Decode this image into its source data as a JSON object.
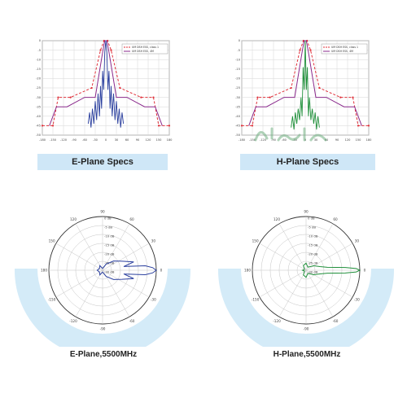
{
  "panels": {
    "e_spec_banner": "E-Plane Specs",
    "h_spec_banner": "H-Plane Specs",
    "e_polar_banner": "E-Plane,5500MHz",
    "h_polar_banner": "H-Plane,5500MHz",
    "watermark": "آگهی سرا"
  },
  "colors": {
    "banner_bg": "#cfe7f7",
    "arc_bg": "#d4ebf8",
    "limit_dashed": "#e0303a",
    "limit_solid": "#8a2a8c",
    "e_pattern": "#2a3f9e",
    "h_pattern": "#1f8f3a",
    "grid": "#bfbfbf"
  },
  "chart_data": [
    {
      "type": "line",
      "panel": "E-Plane Specs",
      "xlim": [
        -180,
        180
      ],
      "ylim": [
        -50,
        0
      ],
      "xticks": [
        "-180",
        "-150",
        "-120",
        "-90",
        "-60",
        "-30",
        "0",
        "30",
        "60",
        "90",
        "120",
        "150",
        "180"
      ],
      "yticks": [
        "0",
        "-5",
        "-10",
        "-15",
        "-20",
        "-25",
        "-30",
        "-35",
        "-40",
        "-45",
        "-50"
      ],
      "legend": [
        "UM DSH ESS, class 1",
        "UM DSH ESS, 4M"
      ],
      "series": [
        {
          "style": "dashed",
          "color": "#e0303a",
          "x": [
            -180,
            -150,
            -135,
            -100,
            -40,
            -15,
            -5,
            5,
            15,
            40,
            100,
            135,
            150,
            180
          ],
          "y": [
            -45,
            -45,
            -30,
            -30,
            -25,
            -5,
            0,
            0,
            -5,
            -25,
            -30,
            -30,
            -45,
            -45
          ]
        },
        {
          "style": "solid",
          "color": "#8a2a8c",
          "x": [
            -160,
            -140,
            -110,
            -60,
            -30,
            -8,
            -3,
            3,
            8,
            30,
            60,
            110,
            140,
            160
          ],
          "y": [
            -45,
            -35,
            -35,
            -30,
            -30,
            -5,
            0,
            0,
            -5,
            -30,
            -30,
            -35,
            -35,
            -45
          ]
        },
        {
          "style": "solid",
          "color": "#2a3f9e",
          "x": [
            -50,
            -46,
            -42,
            -38,
            -34,
            -30,
            -26,
            -22,
            -18,
            -15,
            -12,
            -9,
            -6,
            -3,
            0,
            3,
            6,
            9,
            12,
            15,
            18,
            22,
            26,
            30,
            34,
            38,
            42,
            46,
            50
          ],
          "y": [
            -44,
            -38,
            -46,
            -36,
            -44,
            -32,
            -42,
            -28,
            -40,
            -24,
            -36,
            -16,
            -26,
            -6,
            0,
            -6,
            -26,
            -16,
            -36,
            -24,
            -40,
            -28,
            -42,
            -32,
            -44,
            -36,
            -46,
            -38,
            -44
          ]
        }
      ]
    },
    {
      "type": "line",
      "panel": "H-Plane Specs",
      "xlim": [
        -180,
        180
      ],
      "ylim": [
        -50,
        0
      ],
      "xticks": [
        "-180",
        "-150",
        "-120",
        "-90",
        "-60",
        "-30",
        "0",
        "30",
        "60",
        "90",
        "120",
        "150",
        "180"
      ],
      "yticks": [
        "0",
        "-5",
        "-10",
        "-15",
        "-20",
        "-25",
        "-30",
        "-35",
        "-40",
        "-45",
        "-50"
      ],
      "legend": [
        "UM DSH ESS, class 1",
        "UM DSH ESS, 4M"
      ],
      "series": [
        {
          "style": "dashed",
          "color": "#e0303a",
          "x": [
            -180,
            -150,
            -135,
            -100,
            -40,
            -15,
            -5,
            5,
            15,
            40,
            100,
            135,
            150,
            180
          ],
          "y": [
            -45,
            -45,
            -30,
            -30,
            -25,
            -5,
            0,
            0,
            -5,
            -25,
            -30,
            -30,
            -45,
            -45
          ]
        },
        {
          "style": "solid",
          "color": "#8a2a8c",
          "x": [
            -160,
            -140,
            -110,
            -60,
            -30,
            -8,
            -3,
            3,
            8,
            30,
            60,
            110,
            140,
            160
          ],
          "y": [
            -45,
            -35,
            -35,
            -30,
            -30,
            -5,
            0,
            0,
            -5,
            -30,
            -30,
            -35,
            -35,
            -45
          ]
        },
        {
          "style": "solid",
          "color": "#1f8f3a",
          "x": [
            -40,
            -36,
            -32,
            -28,
            -24,
            -20,
            -16,
            -12,
            -9,
            -6,
            -3,
            0,
            3,
            6,
            9,
            12,
            16,
            20,
            24,
            28,
            32,
            36,
            40
          ],
          "y": [
            -46,
            -40,
            -47,
            -38,
            -44,
            -36,
            -42,
            -30,
            -40,
            -14,
            -26,
            0,
            -26,
            -14,
            -40,
            -30,
            -42,
            -36,
            -44,
            -38,
            -47,
            -40,
            -46
          ]
        }
      ]
    },
    {
      "type": "polar",
      "panel": "E-Plane,5500MHz",
      "angle_labels": [
        "90",
        "60",
        "30",
        "0",
        "-30",
        "-60",
        "-90",
        "-120",
        "-150",
        "180",
        "150",
        "120"
      ],
      "radial_labels": [
        "0 dB",
        "-5 dB",
        "-10 dB",
        "-15 dB",
        "-20 dB",
        "-25 dB",
        "-30 dB"
      ],
      "rlim": [
        -30,
        0
      ],
      "series": [
        {
          "color": "#2a3f9e",
          "theta": [
            -180,
            -150,
            -120,
            -90,
            -60,
            -40,
            -25,
            -15,
            -10,
            -6,
            -3,
            0,
            3,
            6,
            10,
            15,
            25,
            40,
            60,
            90,
            120,
            150,
            180
          ],
          "r": [
            -27,
            -28,
            -27,
            -29,
            -26,
            -22,
            -18,
            -12,
            -18,
            -6,
            -2,
            0,
            -2,
            -6,
            -18,
            -12,
            -18,
            -22,
            -26,
            -29,
            -27,
            -28,
            -27
          ]
        }
      ]
    },
    {
      "type": "polar",
      "panel": "H-Plane,5500MHz",
      "angle_labels": [
        "90",
        "60",
        "30",
        "0",
        "-30",
        "-60",
        "-90",
        "-120",
        "-150",
        "180",
        "150",
        "120"
      ],
      "radial_labels": [
        "0 dB",
        "-5 dB",
        "-10 dB",
        "-15 dB",
        "-20 dB",
        "-25 dB",
        "-30 dB"
      ],
      "rlim": [
        -30,
        0
      ],
      "series": [
        {
          "color": "#1f8f3a",
          "theta": [
            -180,
            -150,
            -120,
            -90,
            -60,
            -30,
            -15,
            -8,
            -4,
            -2,
            0,
            2,
            4,
            8,
            15,
            30,
            60,
            90,
            120,
            150,
            180
          ],
          "r": [
            -28,
            -29,
            -27,
            -26,
            -28,
            -25,
            -22,
            -18,
            -8,
            -2,
            0,
            -2,
            -8,
            -18,
            -22,
            -25,
            -28,
            -26,
            -27,
            -29,
            -28
          ]
        }
      ]
    }
  ]
}
